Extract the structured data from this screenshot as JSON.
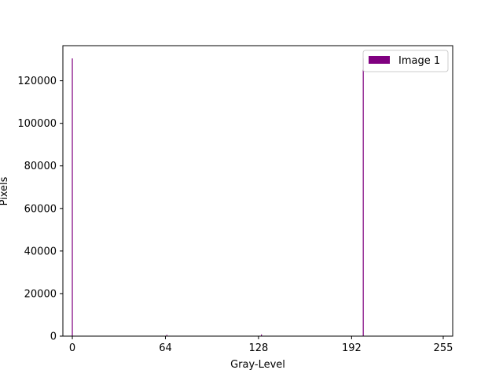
{
  "chart_data": {
    "type": "bar",
    "xlabel": "Gray-Level",
    "ylabel": "Pixels",
    "xlim": [
      -6.5,
      261.5
    ],
    "ylim": [
      0,
      136500
    ],
    "x_ticks": [
      0,
      64,
      128,
      192,
      255
    ],
    "x_tick_labels": [
      "0",
      "64",
      "128",
      "192",
      "255"
    ],
    "y_ticks": [
      0,
      20000,
      40000,
      60000,
      80000,
      100000,
      120000
    ],
    "y_tick_labels": [
      "0",
      "20000",
      "40000",
      "60000",
      "80000",
      "100000",
      "120000"
    ],
    "grid": false,
    "legend_position": "top-right",
    "series": [
      {
        "name": "Image 1",
        "color": "#800080",
        "bins": [
          0,
          65,
          130,
          200
        ],
        "values": [
          130500,
          600,
          800,
          130500
        ]
      }
    ]
  }
}
